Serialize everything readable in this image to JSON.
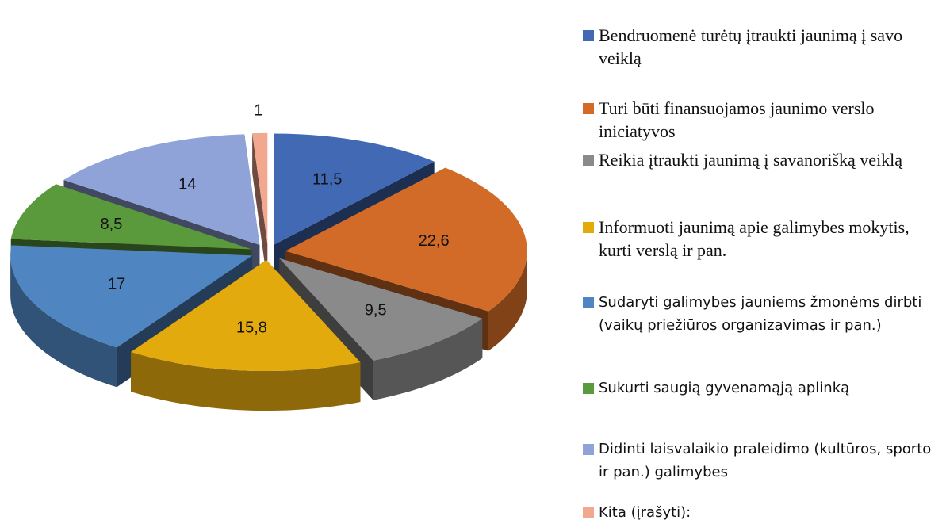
{
  "chart_data": {
    "type": "pie3d",
    "categories": [
      "Bendruomenė turėtų įtraukti jaunimą į savo veiklą",
      "Turi būti finansuojamos jaunimo verslo iniciatyvos",
      "Reikia įtraukti jaunimą į savanorišką veiklą",
      "Informuoti jaunimą apie galimybes mokytis, kurti verslą ir pan.",
      "Sudaryti galimybes jauniems žmonėms dirbti (vaikų priežiūros organizavimas ir pan.)",
      "Sukurti saugią gyvenamąją aplinką",
      "Didinti laisvalaikio praleidimo (kultūros, sporto ir pan.) galimybes",
      "Kita (įrašyti):"
    ],
    "values": [
      11.5,
      22.6,
      9.5,
      15.8,
      17,
      8.5,
      14,
      1
    ],
    "value_labels": [
      "11,5",
      "22,6",
      "9,5",
      "15,8",
      "17",
      "8,5",
      "14",
      "1"
    ],
    "colors": [
      "#4169b4",
      "#d26b27",
      "#8a8a8a",
      "#e3aa0e",
      "#4f86c2",
      "#5a9a3c",
      "#8fa3d8",
      "#f2a78f"
    ],
    "legend": "right"
  }
}
